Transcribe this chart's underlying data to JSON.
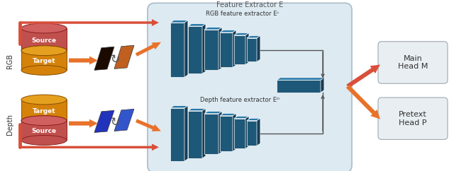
{
  "title": "Feature Extractor E",
  "feature_box_color": "#ddeaf2",
  "feature_box_edge": "#aabbc8",
  "block_face": "#1e5878",
  "block_top": "#2878a8",
  "block_side": "#153d56",
  "cyl_rgb_body": "#c0504d",
  "cyl_rgb_top": "#d06060",
  "cyl_rgb_edge": "#8B2020",
  "cyl_dep_body": "#d4820a",
  "cyl_dep_top": "#e5a020",
  "cyl_dep_edge": "#8B5000",
  "arrow_orange": "#e8722a",
  "arrow_orange2": "#f0a020",
  "arrow_red": "#d94f3a",
  "head_box_color": "#e8eef2",
  "head_box_edge": "#a0aab0",
  "title_color": "#555555",
  "label_color": "#333333",
  "connector_color": "#555555",
  "rgb_label": "RGB",
  "depth_label": "Depth",
  "rgb_extractor_label": "RGB feature extractor Eᶜ",
  "depth_extractor_label": "Depth feature extractor Eᴰ",
  "main_head_label": "Main\nHead M",
  "pretext_head_label": "Pretext\nHead P",
  "img_rgb1_color": "#1a0a00",
  "img_rgb2_color": "#c06020",
  "img_dep1_color": "#2233cc",
  "img_dep2_color": "#3344dd"
}
